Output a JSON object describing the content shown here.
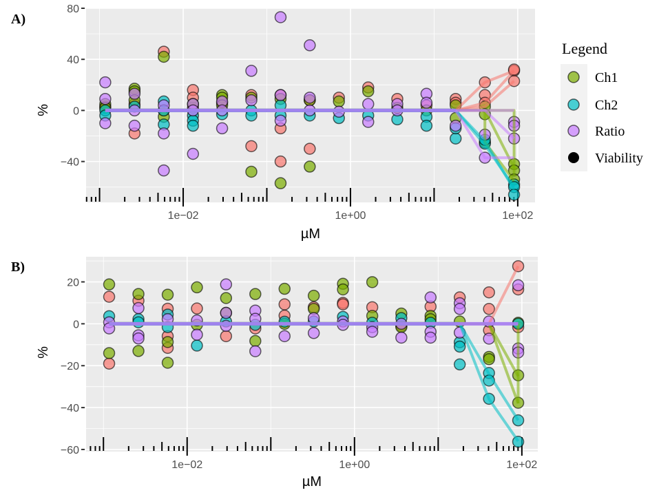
{
  "legend": {
    "title": "Legend",
    "entries": [
      {
        "name": "Ch1",
        "color": "#F8766D"
      },
      {
        "name": "Ch2",
        "color": "#7CAE00"
      },
      {
        "name": "Ratio",
        "color": "#00BFC4"
      },
      {
        "name": "Viability",
        "color": "#C77CFF"
      }
    ]
  },
  "chart_data": [
    {
      "panel_label": "A)",
      "type": "scatter",
      "xlabel": "µM",
      "ylabel": "%",
      "x_scale": "log10",
      "xlim": [
        0.00069,
        161
      ],
      "ylim": [
        -72,
        80
      ],
      "y_ticks": [
        {
          "value": -40,
          "label": "−40"
        },
        {
          "value": 0,
          "label": "0"
        },
        {
          "value": 40,
          "label": "40"
        },
        {
          "value": 80,
          "label": "80"
        }
      ],
      "x_ticks": [
        {
          "value": 0.01,
          "label": "1e−02"
        },
        {
          "value": 1,
          "label": "1e+00"
        },
        {
          "value": 100,
          "label": "1e+02"
        }
      ],
      "grid": true,
      "concentrations": [
        0.00117,
        0.00262,
        0.00586,
        0.0131,
        0.0292,
        0.0653,
        0.146,
        0.326,
        0.728,
        1.63,
        3.63,
        8.11,
        18.1,
        40.5,
        90.4
      ],
      "series": [
        {
          "name": "Ch1",
          "y": [
            [
              3
            ],
            [
              -18,
              5
            ],
            [
              46,
              0
            ],
            [
              16,
              10,
              2
            ],
            [
              6
            ],
            [
              12,
              -28
            ],
            [
              12,
              -14,
              -40
            ],
            [
              -30,
              8
            ],
            [
              10
            ],
            [
              18
            ],
            [
              9
            ],
            [
              4
            ],
            [
              9,
              6
            ],
            [
              22,
              12,
              6
            ],
            [
              31,
              32,
              23
            ]
          ],
          "lines": [
            [
              [
                0.00117,
                0
              ],
              [
                18.1,
                0
              ]
            ],
            [
              [
                18.1,
                0
              ],
              [
                40.5,
                22
              ],
              [
                90.4,
                31
              ]
            ],
            [
              [
                18.1,
                0
              ],
              [
                40.5,
                6
              ],
              [
                90.4,
                31
              ]
            ],
            [
              [
                18.1,
                0
              ],
              [
                40.5,
                3
              ],
              [
                90.4,
                23
              ]
            ]
          ]
        },
        {
          "name": "Ch2",
          "y": [
            [
              5,
              2
            ],
            [
              17,
              15,
              8
            ],
            [
              42,
              -5
            ],
            [
              5
            ],
            [
              12,
              10,
              4
            ],
            [
              10,
              -48
            ],
            [
              9,
              -57
            ],
            [
              8,
              -44
            ],
            [
              7
            ],
            [
              15
            ],
            [
              2
            ],
            [
              0
            ],
            [
              4,
              -6
            ],
            [
              3,
              -3,
              -25
            ],
            [
              -42,
              -47,
              -54
            ]
          ],
          "lines": [
            [
              [
                0.00117,
                0
              ],
              [
                18.1,
                0
              ]
            ],
            [
              [
                18.1,
                0
              ],
              [
                40.5,
                0
              ],
              [
                90.4,
                -45
              ]
            ],
            [
              [
                18.1,
                0
              ],
              [
                40.5,
                0
              ],
              [
                40.5,
                -25
              ],
              [
                90.4,
                -55
              ]
            ],
            [
              [
                18.1,
                0
              ],
              [
                90.4,
                0
              ],
              [
                90.4,
                -50
              ]
            ]
          ]
        },
        {
          "name": "Ratio",
          "y": [
            [
              0,
              -4
            ],
            [
              3
            ],
            [
              7,
              0,
              -11
            ],
            [
              -4,
              -8,
              -12
            ],
            [
              -3
            ],
            [
              0,
              -4
            ],
            [
              4,
              -4
            ],
            [
              -4
            ],
            [
              -6
            ],
            [
              -4
            ],
            [
              -7
            ],
            [
              -5,
              -12
            ],
            [
              -22,
              -14
            ],
            [
              -26,
              -23
            ],
            [
              -58,
              -60,
              -66
            ]
          ],
          "lines": [
            [
              [
                0.00117,
                0
              ],
              [
                18.1,
                0
              ]
            ],
            [
              [
                18.1,
                0
              ],
              [
                40.5,
                -27
              ],
              [
                90.4,
                -60
              ]
            ],
            [
              [
                18.1,
                0
              ],
              [
                40.5,
                -24
              ],
              [
                90.4,
                -62
              ]
            ]
          ]
        },
        {
          "name": "Viability",
          "y": [
            [
              22,
              9,
              -10
            ],
            [
              13,
              0,
              -12
            ],
            [
              4,
              -18,
              -47
            ],
            [
              5,
              0,
              -34
            ],
            [
              7,
              0,
              -14
            ],
            [
              31,
              8
            ],
            [
              73,
              12,
              -8
            ],
            [
              51,
              10,
              0
            ],
            [
              -1
            ],
            [
              5,
              -9
            ],
            [
              5,
              0
            ],
            [
              13,
              6
            ],
            [
              -12
            ],
            [
              -19,
              -37
            ],
            [
              -9,
              -12,
              -22
            ]
          ],
          "lines": [
            [
              [
                0.00117,
                0
              ],
              [
                18.1,
                0
              ]
            ],
            [
              [
                18.1,
                0
              ],
              [
                90.4,
                0
              ]
            ],
            [
              [
                18.1,
                0
              ],
              [
                40.5,
                -37
              ],
              [
                90.4,
                -37
              ]
            ],
            [
              [
                18.1,
                0
              ],
              [
                40.5,
                0
              ],
              [
                90.4,
                -22
              ]
            ]
          ]
        }
      ]
    },
    {
      "panel_label": "B)",
      "type": "scatter",
      "xlabel": "µM",
      "ylabel": "%",
      "x_scale": "log10",
      "xlim": [
        0.00062,
        155
      ],
      "ylim": [
        -61,
        32
      ],
      "y_ticks": [
        {
          "value": -60,
          "label": "−60"
        },
        {
          "value": -40,
          "label": "−40"
        },
        {
          "value": -20,
          "label": "−20"
        },
        {
          "value": 0,
          "label": "0"
        },
        {
          "value": 20,
          "label": "20"
        }
      ],
      "x_ticks": [
        {
          "value": 0.01,
          "label": "1e−02"
        },
        {
          "value": 1,
          "label": "1e+00"
        },
        {
          "value": 100,
          "label": "1e+02"
        }
      ],
      "grid": true,
      "concentrations": [
        0.00117,
        0.00262,
        0.00586,
        0.0131,
        0.0292,
        0.0653,
        0.146,
        0.326,
        0.728,
        1.63,
        3.63,
        8.11,
        18.1,
        40.5,
        90.4
      ],
      "series": [
        {
          "name": "Ch1",
          "y": [
            [
              12.9,
              -19
            ],
            [
              11
            ],
            [
              7.2,
              -5.9,
              -11.5
            ],
            [
              7.3
            ],
            [
              -5.9
            ],
            [
              -2.2
            ],
            [
              9.3,
              3.9
            ],
            [
              7.9
            ],
            [
              10,
              9.3
            ],
            [
              7.9
            ],
            [
              -1
            ],
            [
              8.2
            ],
            [
              12.6
            ],
            [
              15,
              7.1,
              -3.1
            ],
            [
              27.5,
              16.4,
              -1.6
            ]
          ],
          "lines": [
            [
              [
                0.00117,
                0
              ],
              [
                18.1,
                0
              ]
            ],
            [
              [
                18.1,
                0
              ],
              [
                40.5,
                0
              ],
              [
                90.4,
                27.5
              ]
            ]
          ]
        },
        {
          "name": "Ch2",
          "y": [
            [
              18.8,
              -14
            ],
            [
              14.2,
              -13
            ],
            [
              13.9,
              -8.7,
              -18.6
            ],
            [
              17.4,
              -0.5
            ],
            [
              12.3,
              5.2
            ],
            [
              14.2,
              -8.2
            ],
            [
              16.7,
              0
            ],
            [
              13.4,
              7.1
            ],
            [
              19.1,
              16.4
            ],
            [
              19.9,
              3.8
            ],
            [
              4.9,
              -1.6
            ],
            [
              3.8,
              2.2
            ],
            [
              1.1
            ],
            [
              -15.8,
              -16.9
            ],
            [
              0.5,
              -24.6,
              -37.7
            ]
          ],
          "lines": [
            [
              [
                0.00117,
                0
              ],
              [
                18.1,
                0
              ]
            ],
            [
              [
                18.1,
                0
              ],
              [
                40.5,
                0
              ],
              [
                90.4,
                -25
              ]
            ],
            [
              [
                40.5,
                0
              ],
              [
                90.4,
                -38
              ]
            ],
            [
              [
                90.4,
                0
              ],
              [
                90.4,
                -38
              ]
            ]
          ]
        },
        {
          "name": "Ratio",
          "y": [
            [
              3.6
            ],
            [
              2.2,
              0.7
            ],
            [
              4.4,
              -1.6
            ],
            [
              -10.4
            ],
            [
              1.1
            ],
            [
              -0.5
            ],
            [
              1
            ],
            [
              1.1
            ],
            [
              3.3
            ],
            [
              0.5
            ],
            [
              2.7
            ],
            [
              0.5
            ],
            [
              -8.8,
              -10.9,
              -19.4
            ],
            [
              -23.5,
              -27.1,
              -35.8
            ],
            [
              0,
              -46.1,
              -56.3
            ]
          ],
          "lines": [
            [
              [
                0.00117,
                0
              ],
              [
                18.1,
                0
              ]
            ],
            [
              [
                18.1,
                0
              ],
              [
                40.5,
                -24
              ],
              [
                90.4,
                -46
              ]
            ],
            [
              [
                18.1,
                0
              ],
              [
                40.5,
                -36
              ],
              [
                90.4,
                -56
              ]
            ]
          ]
        },
        {
          "name": "Viability",
          "y": [
            [
              0.7,
              -2.2
            ],
            [
              7.5,
              -5.5,
              -7
            ],
            [
              2.2
            ],
            [
              1.6,
              -5.2
            ],
            [
              18.8,
              5.2,
              -1
            ],
            [
              6.3,
              2.4,
              -13.1
            ],
            [
              -5.9
            ],
            [
              2.7,
              -4.4
            ],
            [
              1.1,
              -0.5
            ],
            [
              -1.6,
              -3.8
            ],
            [
              0,
              -6.6
            ],
            [
              12.6,
              -3.8,
              -6.6
            ],
            [
              9.8,
              7.1,
              -4.2
            ],
            [
              1.1,
              -7.1
            ],
            [
              18.4,
              -11.8,
              -13.7
            ]
          ],
          "lines": [
            [
              [
                0.00117,
                0
              ],
              [
                90.4,
                0
              ]
            ]
          ]
        }
      ]
    }
  ]
}
